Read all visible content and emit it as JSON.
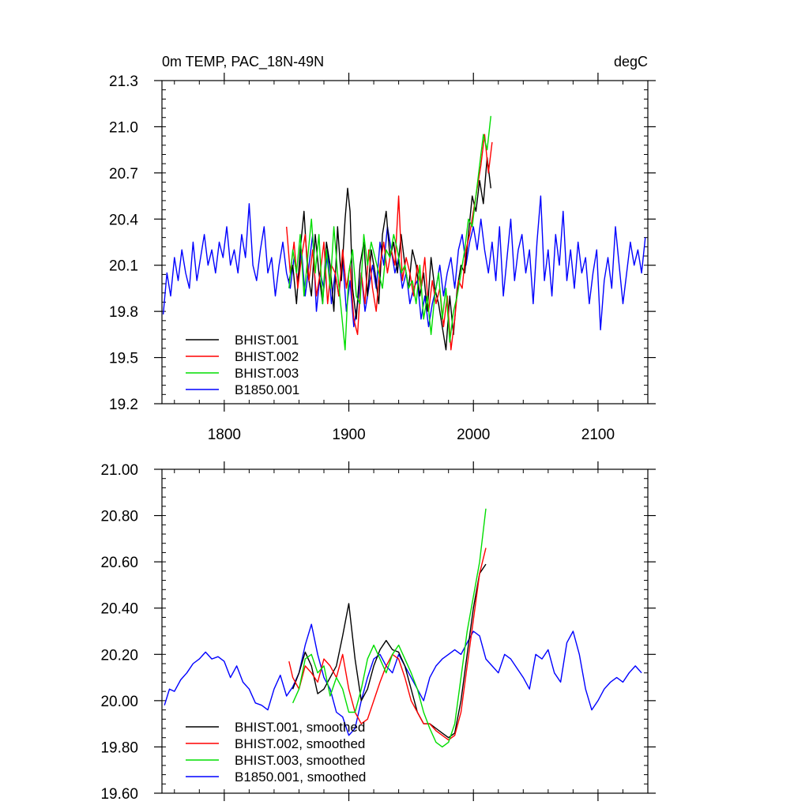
{
  "chart_data": [
    {
      "type": "line",
      "title": "0m TEMP, PAC_18N-49N",
      "units_label": "degC",
      "xlabel": "",
      "ylabel": "",
      "xlim": [
        1750,
        2140
      ],
      "ylim": [
        19.2,
        21.3
      ],
      "x_ticks": [
        1800,
        1900,
        2000,
        2100
      ],
      "y_ticks": [
        19.2,
        19.5,
        19.8,
        20.1,
        20.4,
        20.7,
        21.0,
        21.3
      ],
      "y_tick_labels": [
        "19.2",
        "19.5",
        "19.8",
        "20.1",
        "20.4",
        "20.7",
        "21.0",
        "21.3"
      ],
      "legend": "bottom-left",
      "series": [
        {
          "name": "BHIST.001",
          "color": "#000000",
          "x": [
            1852,
            1855,
            1858,
            1861,
            1864,
            1867,
            1870,
            1873,
            1876,
            1879,
            1882,
            1885,
            1888,
            1891,
            1894,
            1897,
            1899,
            1901,
            1903,
            1906,
            1909,
            1912,
            1915,
            1918,
            1921,
            1924,
            1927,
            1930,
            1933,
            1936,
            1939,
            1942,
            1945,
            1948,
            1951,
            1954,
            1957,
            1960,
            1963,
            1966,
            1969,
            1972,
            1975,
            1978,
            1981,
            1984,
            1987,
            1990,
            1993,
            1996,
            1999,
            2002,
            2005,
            2008,
            2011,
            2014
          ],
          "y": [
            20.0,
            20.1,
            19.85,
            20.2,
            20.45,
            20.05,
            19.9,
            20.3,
            20.05,
            19.85,
            20.25,
            20.1,
            19.8,
            20.35,
            20.0,
            20.4,
            20.6,
            20.45,
            19.95,
            19.75,
            20.1,
            20.25,
            19.9,
            20.2,
            20.05,
            19.85,
            20.3,
            20.45,
            20.15,
            20.25,
            20.05,
            20.3,
            20.1,
            19.95,
            20.2,
            20.1,
            19.9,
            20.05,
            19.8,
            20.15,
            19.95,
            19.85,
            19.7,
            19.55,
            19.9,
            19.65,
            19.95,
            20.1,
            20.05,
            20.3,
            20.55,
            20.45,
            20.65,
            20.5,
            20.8,
            20.6
          ]
        },
        {
          "name": "BHIST.002",
          "color": "#ff0000",
          "x": [
            1850,
            1853,
            1856,
            1859,
            1862,
            1865,
            1868,
            1871,
            1874,
            1877,
            1880,
            1883,
            1886,
            1889,
            1892,
            1895,
            1898,
            1901,
            1904,
            1907,
            1910,
            1913,
            1916,
            1919,
            1922,
            1925,
            1928,
            1931,
            1934,
            1937,
            1940,
            1943,
            1946,
            1949,
            1952,
            1955,
            1958,
            1961,
            1964,
            1967,
            1970,
            1973,
            1976,
            1979,
            1982,
            1985,
            1988,
            1991,
            1994,
            1997,
            2000,
            2003,
            2006,
            2009,
            2012,
            2015
          ],
          "y": [
            20.35,
            20.05,
            20.25,
            19.95,
            20.15,
            20.3,
            20.0,
            20.2,
            19.9,
            20.05,
            20.25,
            19.85,
            20.1,
            20.05,
            19.9,
            20.2,
            19.95,
            20.1,
            19.75,
            19.65,
            20.05,
            19.85,
            20.2,
            19.95,
            19.8,
            20.1,
            20.25,
            20.05,
            20.2,
            20.1,
            20.55,
            20.0,
            20.15,
            20.05,
            19.9,
            20.1,
            19.95,
            20.15,
            19.8,
            20.0,
            19.85,
            19.95,
            19.7,
            19.9,
            19.55,
            19.75,
            20.0,
            19.95,
            20.2,
            20.3,
            20.45,
            20.6,
            20.75,
            20.95,
            20.7,
            20.9
          ]
        },
        {
          "name": "BHIST.003",
          "color": "#00dd00",
          "x": [
            1852,
            1855,
            1858,
            1861,
            1864,
            1867,
            1870,
            1873,
            1876,
            1879,
            1882,
            1885,
            1888,
            1891,
            1894,
            1897,
            1900,
            1903,
            1906,
            1909,
            1912,
            1915,
            1918,
            1921,
            1924,
            1927,
            1930,
            1933,
            1936,
            1939,
            1942,
            1945,
            1948,
            1951,
            1954,
            1957,
            1960,
            1963,
            1966,
            1969,
            1972,
            1975,
            1978,
            1981,
            1984,
            1987,
            1990,
            1993,
            1996,
            1999,
            2002,
            2005,
            2008,
            2011,
            2014
          ],
          "y": [
            19.95,
            20.2,
            20.05,
            20.3,
            19.9,
            20.15,
            20.4,
            20.05,
            20.3,
            19.85,
            20.2,
            19.95,
            20.35,
            20.05,
            19.8,
            19.55,
            20.05,
            20.2,
            19.9,
            19.85,
            20.3,
            20.1,
            20.25,
            20.15,
            20.05,
            19.95,
            20.2,
            20.15,
            20.3,
            20.2,
            20.05,
            20.1,
            19.95,
            20.0,
            19.85,
            20.1,
            19.75,
            19.9,
            19.65,
            19.9,
            20.05,
            19.75,
            19.95,
            19.6,
            19.8,
            19.9,
            20.05,
            20.2,
            20.4,
            20.35,
            20.55,
            20.75,
            20.95,
            20.85,
            21.07
          ]
        },
        {
          "name": "B1850.001",
          "color": "#0000ff",
          "x": [
            1751,
            1754,
            1757,
            1760,
            1763,
            1766,
            1769,
            1772,
            1775,
            1778,
            1781,
            1784,
            1787,
            1790,
            1793,
            1796,
            1799,
            1802,
            1805,
            1808,
            1811,
            1814,
            1817,
            1820,
            1823,
            1826,
            1829,
            1832,
            1835,
            1838,
            1841,
            1844,
            1847,
            1850,
            1853,
            1856,
            1859,
            1862,
            1865,
            1868,
            1871,
            1874,
            1877,
            1880,
            1883,
            1886,
            1889,
            1892,
            1895,
            1898,
            1901,
            1904,
            1907,
            1910,
            1913,
            1916,
            1919,
            1922,
            1925,
            1928,
            1931,
            1934,
            1937,
            1940,
            1943,
            1946,
            1949,
            1952,
            1955,
            1958,
            1961,
            1964,
            1967,
            1970,
            1973,
            1976,
            1979,
            1982,
            1985,
            1988,
            1991,
            1994,
            1997,
            2000,
            2003,
            2006,
            2009,
            2012,
            2015,
            2018,
            2021,
            2024,
            2027,
            2030,
            2033,
            2036,
            2039,
            2042,
            2045,
            2048,
            2051,
            2054,
            2057,
            2060,
            2063,
            2066,
            2069,
            2072,
            2075,
            2078,
            2081,
            2084,
            2087,
            2090,
            2093,
            2096,
            2099,
            2102,
            2105,
            2108,
            2111,
            2114,
            2117,
            2120,
            2123,
            2126,
            2129,
            2132,
            2135,
            2138
          ],
          "y": [
            19.78,
            20.05,
            19.9,
            20.15,
            20.0,
            20.2,
            20.05,
            19.95,
            20.25,
            20.0,
            20.15,
            20.3,
            20.1,
            20.2,
            20.05,
            20.25,
            20.15,
            20.35,
            20.1,
            20.2,
            20.05,
            20.3,
            20.15,
            20.5,
            20.1,
            20.0,
            20.2,
            20.35,
            20.05,
            20.15,
            19.9,
            20.1,
            20.25,
            20.05,
            19.95,
            20.15,
            20.0,
            20.2,
            19.9,
            20.1,
            20.3,
            19.8,
            20.05,
            19.95,
            20.2,
            19.85,
            20.05,
            19.9,
            20.15,
            19.8,
            20.0,
            19.7,
            19.85,
            20.05,
            19.8,
            19.95,
            20.1,
            19.95,
            20.25,
            20.1,
            20.35,
            20.2,
            20.05,
            20.15,
            19.95,
            20.05,
            19.85,
            19.95,
            20.0,
            19.75,
            19.9,
            19.7,
            19.85,
            19.95,
            20.1,
            19.9,
            20.05,
            20.15,
            19.95,
            20.2,
            20.3,
            20.1,
            20.25,
            20.35,
            20.2,
            20.4,
            20.2,
            20.05,
            20.25,
            20.0,
            20.35,
            19.9,
            20.15,
            20.4,
            20.0,
            20.2,
            20.3,
            20.05,
            20.2,
            19.85,
            20.25,
            20.55,
            20.0,
            20.2,
            19.9,
            20.3,
            20.1,
            20.45,
            20.0,
            20.2,
            19.95,
            20.25,
            20.05,
            20.15,
            19.85,
            20.05,
            20.2,
            19.68,
            20.0,
            20.15,
            19.95,
            20.35,
            20.1,
            19.85,
            20.05,
            20.25,
            20.1,
            20.2,
            20.05,
            20.28
          ]
        }
      ]
    },
    {
      "type": "line",
      "title": "",
      "xlabel": "",
      "ylabel": "",
      "xlim": [
        1750,
        2140
      ],
      "ylim": [
        19.6,
        21.0
      ],
      "x_ticks": [
        1800,
        1900,
        2000,
        2100
      ],
      "y_ticks": [
        19.6,
        19.8,
        20.0,
        20.2,
        20.4,
        20.6,
        20.8,
        21.0
      ],
      "y_tick_labels": [
        "19.60",
        "19.80",
        "20.00",
        "20.20",
        "20.40",
        "20.60",
        "20.80",
        "21.00"
      ],
      "legend": "bottom-left",
      "series": [
        {
          "name": "BHIST.001, smoothed",
          "color": "#000000",
          "x": [
            1855,
            1860,
            1865,
            1870,
            1875,
            1880,
            1885,
            1890,
            1895,
            1900,
            1905,
            1910,
            1915,
            1920,
            1925,
            1930,
            1935,
            1940,
            1945,
            1950,
            1955,
            1960,
            1965,
            1970,
            1975,
            1980,
            1985,
            1990,
            1995,
            2000,
            2005,
            2010
          ],
          "y": [
            20.05,
            20.12,
            20.21,
            20.15,
            20.03,
            20.05,
            20.1,
            20.15,
            20.28,
            20.42,
            20.18,
            20.0,
            20.05,
            20.15,
            20.22,
            20.26,
            20.22,
            20.21,
            20.15,
            20.05,
            19.95,
            19.9,
            19.9,
            19.88,
            19.86,
            19.84,
            19.86,
            20.0,
            20.2,
            20.4,
            20.55,
            20.59
          ]
        },
        {
          "name": "BHIST.002, smoothed",
          "color": "#ff0000",
          "x": [
            1852,
            1855,
            1860,
            1865,
            1870,
            1875,
            1880,
            1885,
            1890,
            1895,
            1900,
            1905,
            1910,
            1915,
            1920,
            1925,
            1930,
            1935,
            1940,
            1945,
            1950,
            1955,
            1960,
            1965,
            1970,
            1975,
            1980,
            1985,
            1990,
            1995,
            2000,
            2005,
            2010
          ],
          "y": [
            20.17,
            20.1,
            20.05,
            20.15,
            20.12,
            20.08,
            20.18,
            20.15,
            20.1,
            20.2,
            20.05,
            19.95,
            19.9,
            19.92,
            20.0,
            20.08,
            20.15,
            20.2,
            20.18,
            20.1,
            20.0,
            19.95,
            19.9,
            19.9,
            19.87,
            19.85,
            19.83,
            19.85,
            19.95,
            20.15,
            20.35,
            20.55,
            20.66
          ]
        },
        {
          "name": "BHIST.003, smoothed",
          "color": "#00dd00",
          "x": [
            1855,
            1860,
            1865,
            1870,
            1875,
            1880,
            1885,
            1890,
            1895,
            1900,
            1905,
            1910,
            1915,
            1920,
            1925,
            1930,
            1935,
            1940,
            1945,
            1950,
            1955,
            1960,
            1965,
            1970,
            1975,
            1980,
            1985,
            1990,
            1995,
            2000,
            2005,
            2010
          ],
          "y": [
            19.99,
            20.05,
            20.18,
            20.2,
            20.12,
            20.15,
            20.02,
            20.1,
            20.05,
            19.95,
            19.95,
            20.05,
            20.18,
            20.24,
            20.18,
            20.12,
            20.2,
            20.24,
            20.18,
            20.12,
            20.05,
            19.95,
            19.88,
            19.82,
            19.8,
            19.82,
            19.9,
            20.1,
            20.3,
            20.45,
            20.6,
            20.83
          ]
        },
        {
          "name": "B1850.001, smoothed",
          "color": "#0000ff",
          "x": [
            1752,
            1756,
            1760,
            1765,
            1770,
            1775,
            1780,
            1785,
            1790,
            1795,
            1800,
            1805,
            1810,
            1815,
            1820,
            1825,
            1830,
            1835,
            1840,
            1845,
            1850,
            1855,
            1860,
            1865,
            1870,
            1875,
            1880,
            1885,
            1890,
            1895,
            1900,
            1905,
            1910,
            1915,
            1920,
            1925,
            1930,
            1935,
            1940,
            1945,
            1950,
            1955,
            1960,
            1965,
            1970,
            1975,
            1980,
            1985,
            1990,
            1995,
            2000,
            2005,
            2010,
            2015,
            2020,
            2025,
            2030,
            2035,
            2040,
            2045,
            2050,
            2055,
            2060,
            2065,
            2070,
            2075,
            2080,
            2085,
            2090,
            2095,
            2100,
            2105,
            2110,
            2115,
            2120,
            2125,
            2130,
            2135
          ],
          "y": [
            19.98,
            20.05,
            20.04,
            20.09,
            20.12,
            20.16,
            20.18,
            20.21,
            20.18,
            20.19,
            20.17,
            20.1,
            20.15,
            20.08,
            20.05,
            19.99,
            19.98,
            19.96,
            20.05,
            20.11,
            20.02,
            20.06,
            20.12,
            20.24,
            20.33,
            20.2,
            20.1,
            20.05,
            19.95,
            19.93,
            19.85,
            19.88,
            20.0,
            20.1,
            20.18,
            20.2,
            20.15,
            20.12,
            20.2,
            20.15,
            20.1,
            20.05,
            20.0,
            20.1,
            20.15,
            20.18,
            20.2,
            20.22,
            20.2,
            20.25,
            20.3,
            20.28,
            20.18,
            20.15,
            20.12,
            20.2,
            20.18,
            20.14,
            20.1,
            20.05,
            20.2,
            20.18,
            20.22,
            20.12,
            20.08,
            20.25,
            20.3,
            20.2,
            20.05,
            19.96,
            20.0,
            20.05,
            20.08,
            20.1,
            20.08,
            20.12,
            20.15,
            20.12
          ]
        }
      ]
    }
  ]
}
